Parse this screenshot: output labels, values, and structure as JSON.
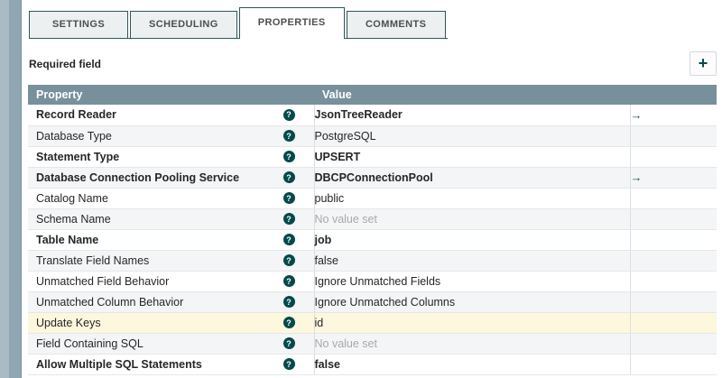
{
  "colors": {
    "accent": "#06494b",
    "accent-border": "#2f575a",
    "accent-arrow": "#1d4d50",
    "table-header-bg": "#78909c",
    "highlight": "#fdf7de",
    "edge-outer": "#a9bcc6",
    "edge-inner": "#90a7b3",
    "edge-border": "#7b93a0"
  },
  "icons": {
    "help": "?",
    "goto": "→",
    "add": "+"
  },
  "tabs": [
    {
      "label": "SETTINGS",
      "active": false
    },
    {
      "label": "SCHEDULING",
      "active": false
    },
    {
      "label": "PROPERTIES",
      "active": true
    },
    {
      "label": "COMMENTS",
      "active": false
    }
  ],
  "toolbar": {
    "required_field_label": "Required field"
  },
  "table": {
    "columns": [
      "Property",
      "Value"
    ],
    "rows": [
      {
        "name": "Record Reader",
        "bold": true,
        "value": "JsonTreeReader",
        "value_bold": true,
        "arrow": true
      },
      {
        "name": "Database Type",
        "value": "PostgreSQL"
      },
      {
        "name": "Statement Type",
        "bold": true,
        "value": "UPSERT",
        "value_bold": true
      },
      {
        "name": "Database Connection Pooling Service",
        "bold": true,
        "value": "DBCPConnectionPool",
        "value_bold": true,
        "arrow": true
      },
      {
        "name": "Catalog Name",
        "value": "public"
      },
      {
        "name": "Schema Name",
        "value": "No value set",
        "empty": true
      },
      {
        "name": "Table Name",
        "bold": true,
        "value": "job",
        "value_bold": true
      },
      {
        "name": "Translate Field Names",
        "value": "false"
      },
      {
        "name": "Unmatched Field Behavior",
        "value": "Ignore Unmatched Fields"
      },
      {
        "name": "Unmatched Column Behavior",
        "value": "Ignore Unmatched Columns"
      },
      {
        "name": "Update Keys",
        "value": "id",
        "highlight": true
      },
      {
        "name": "Field Containing SQL",
        "value": "No value set",
        "empty": true
      },
      {
        "name": "Allow Multiple SQL Statements",
        "bold": true,
        "value": "false",
        "value_bold": true
      }
    ]
  }
}
